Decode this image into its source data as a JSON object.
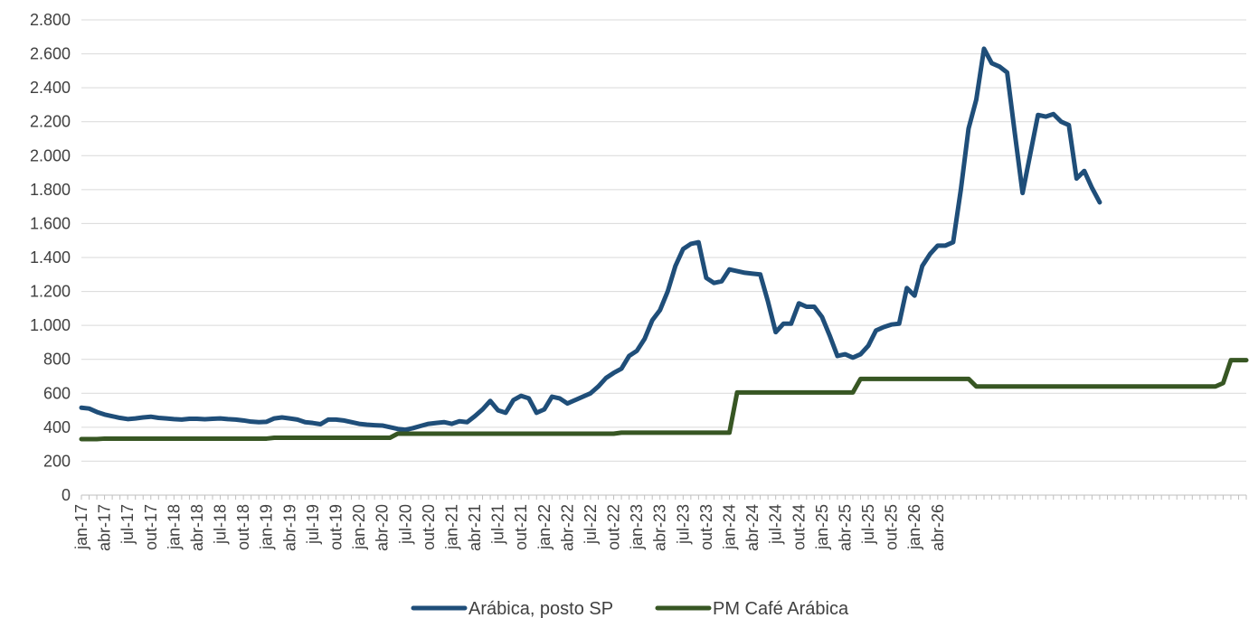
{
  "chart_data": {
    "type": "line",
    "title": "",
    "xlabel": "",
    "ylabel": "",
    "ylim": [
      0,
      2800
    ],
    "yticks": [
      0,
      200,
      400,
      600,
      800,
      1000,
      1200,
      1400,
      1600,
      1800,
      2000,
      2200,
      2400,
      2600,
      2800
    ],
    "ytick_labels": [
      "0",
      "200",
      "400",
      "600",
      "800",
      "1.000",
      "1.200",
      "1.400",
      "1.600",
      "1.800",
      "2.000",
      "2.200",
      "2.400",
      "2.600",
      "2.800"
    ],
    "grid": true,
    "legend_position": "bottom",
    "x_start": "2017-01",
    "x_labels": [
      "jan-17",
      "abr-17",
      "jul-17",
      "out-17",
      "jan-18",
      "abr-18",
      "jul-18",
      "out-18",
      "jan-19",
      "abr-19",
      "jul-19",
      "out-19",
      "jan-20",
      "abr-20",
      "jul-20",
      "out-20",
      "jan-21",
      "abr-21",
      "jul-21",
      "out-21",
      "jan-22",
      "abr-22",
      "jul-22",
      "out-22",
      "jan-23",
      "abr-23",
      "jul-23",
      "out-23",
      "jan-24",
      "abr-24",
      "jul-24",
      "out-24",
      "jan-25",
      "abr-25",
      "jul-25",
      "out-25",
      "jan-26",
      "abr-26"
    ],
    "series": [
      {
        "name": "Arábica, posto SP",
        "color": "#1F4E79",
        "values": [
          515,
          510,
          490,
          475,
          465,
          455,
          448,
          452,
          458,
          462,
          455,
          452,
          448,
          445,
          450,
          450,
          447,
          450,
          452,
          448,
          445,
          440,
          433,
          430,
          432,
          452,
          458,
          452,
          445,
          430,
          425,
          418,
          445,
          445,
          440,
          430,
          420,
          415,
          412,
          410,
          400,
          390,
          385,
          395,
          408,
          420,
          425,
          430,
          420,
          435,
          430,
          465,
          505,
          555,
          500,
          485,
          560,
          585,
          570,
          485,
          505,
          580,
          570,
          540,
          560,
          580,
          600,
          640,
          690,
          720,
          745,
          820,
          850,
          920,
          1030,
          1090,
          1200,
          1350,
          1450,
          1480,
          1490,
          1280,
          1250,
          1260,
          1330,
          1320,
          1310,
          1305,
          1300,
          1140,
          960,
          1010,
          1010,
          1130,
          1110,
          1110,
          1050,
          940,
          820,
          830,
          810,
          830,
          880,
          970,
          990,
          1005,
          1010,
          1220,
          1175,
          1350,
          1420,
          1470,
          1470,
          1490,
          1800,
          2160,
          2330,
          2630,
          2545,
          2525,
          2490,
          2130,
          1780,
          2010,
          2240,
          2230,
          2245,
          2200,
          2180,
          1865,
          1910,
          1810,
          1725
        ]
      },
      {
        "name": "PM Café Arábica",
        "color": "#375623",
        "values": [
          330,
          330,
          330,
          333,
          333,
          333,
          333,
          333,
          333,
          333,
          333,
          333,
          333,
          333,
          333,
          333,
          333,
          333,
          333,
          333,
          333,
          333,
          333,
          333,
          333,
          338,
          338,
          338,
          338,
          338,
          338,
          338,
          338,
          338,
          338,
          338,
          338,
          338,
          338,
          338,
          338,
          362,
          362,
          362,
          362,
          362,
          362,
          362,
          362,
          362,
          362,
          362,
          362,
          362,
          362,
          362,
          362,
          362,
          362,
          362,
          362,
          362,
          362,
          362,
          362,
          362,
          362,
          362,
          362,
          362,
          368,
          368,
          368,
          368,
          368,
          368,
          368,
          368,
          368,
          368,
          368,
          368,
          368,
          368,
          368,
          605,
          605,
          605,
          605,
          605,
          605,
          605,
          605,
          605,
          605,
          605,
          605,
          605,
          605,
          605,
          605,
          685,
          685,
          685,
          685,
          685,
          685,
          685,
          685,
          685,
          685,
          685,
          685,
          685,
          685,
          685,
          640,
          640,
          640,
          640,
          640,
          640,
          640,
          640,
          640,
          640,
          640,
          640,
          640,
          640,
          640,
          640,
          640,
          640,
          640,
          640,
          640,
          640,
          640,
          640,
          640,
          640,
          640,
          640,
          640,
          640,
          640,
          640,
          660,
          795,
          795,
          795
        ]
      }
    ]
  }
}
